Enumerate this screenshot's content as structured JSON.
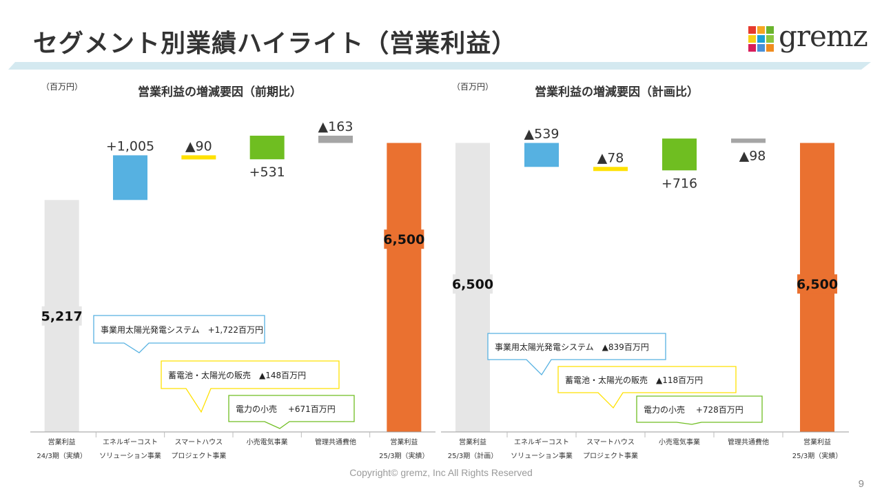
{
  "title": "セグメント別業績ハイライト（営業利益）",
  "logo": {
    "text": "gremz",
    "colors": [
      "#e63a2e",
      "#f5a623",
      "#6ab42d",
      "#f7d117",
      "#1aa0d8",
      "#8cc63f",
      "#d81e5b",
      "#4a90d9",
      "#f08c1e"
    ]
  },
  "footer": "Copyright© gremz, Inc All Rights Reserved",
  "page_number": "9",
  "chart_data": [
    {
      "type": "waterfall",
      "title": "営業利益の増減要因（前期比）",
      "unit_label": "（百万円）",
      "categories": [
        [
          "営業利益",
          "24/3期（実績）"
        ],
        [
          "エネルギーコスト",
          "ソリューション事業"
        ],
        [
          "スマートハウス",
          "プロジェクト事業"
        ],
        [
          "小売電気事業",
          ""
        ],
        [
          "管理共通費他",
          ""
        ],
        [
          "営業利益",
          "25/3期（実績）"
        ]
      ],
      "bars": [
        {
          "kind": "total",
          "value": 5217,
          "label": "5,217",
          "color": "#e6e6e6"
        },
        {
          "kind": "delta",
          "value": 1005,
          "label": "+1,005",
          "color": "#56b1e1"
        },
        {
          "kind": "delta",
          "value": -90,
          "label": "▲90",
          "color": "#ffe100"
        },
        {
          "kind": "delta",
          "value": 531,
          "label": "+531",
          "color": "#6fbe21"
        },
        {
          "kind": "delta",
          "value": -163,
          "label": "▲163",
          "color": "#a5a5a5"
        },
        {
          "kind": "total",
          "value": 6500,
          "label": "6,500",
          "color": "#ea7130"
        }
      ],
      "callouts": [
        {
          "text": "事業用太陽光発電システム　+1,722百万円",
          "color": "#56b1e1"
        },
        {
          "text": "蓄電池・太陽光の販売　▲148百万円",
          "color": "#ffe100"
        },
        {
          "text": "電力の小売　 +671百万円",
          "color": "#6fbe21"
        }
      ]
    },
    {
      "type": "waterfall",
      "title": "営業利益の増減要因（計画比）",
      "unit_label": "（百万円）",
      "categories": [
        [
          "営業利益",
          "25/3期（計画）"
        ],
        [
          "エネルギーコスト",
          "ソリューション事業"
        ],
        [
          "スマートハウス",
          "プロジェクト事業"
        ],
        [
          "小売電気事業",
          ""
        ],
        [
          "管理共通費他",
          ""
        ],
        [
          "営業利益",
          "25/3期（実績）"
        ]
      ],
      "bars": [
        {
          "kind": "total",
          "value": 6500,
          "label": "6,500",
          "color": "#e6e6e6"
        },
        {
          "kind": "delta",
          "value": -539,
          "label": "▲539",
          "color": "#56b1e1"
        },
        {
          "kind": "delta",
          "value": -78,
          "label": "▲78",
          "color": "#ffe100"
        },
        {
          "kind": "delta",
          "value": 716,
          "label": "+716",
          "color": "#6fbe21"
        },
        {
          "kind": "delta",
          "value": -98,
          "label": "▲98",
          "color": "#a5a5a5"
        },
        {
          "kind": "total",
          "value": 6500,
          "label": "6,500",
          "color": "#ea7130"
        }
      ],
      "callouts": [
        {
          "text": "事業用太陽光発電システム　▲839百万円",
          "color": "#56b1e1"
        },
        {
          "text": "蓄電池・太陽光の販売　▲118百万円",
          "color": "#ffe100"
        },
        {
          "text": "電力の小売　 +728百万円",
          "color": "#6fbe21"
        }
      ]
    }
  ]
}
